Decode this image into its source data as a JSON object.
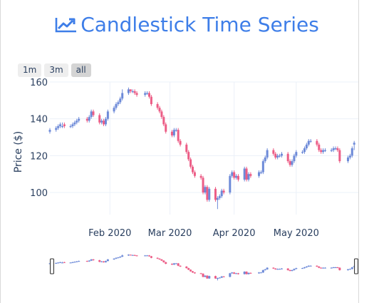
{
  "title": "Candlestick Time Series",
  "title_icon": "trend-chart-icon",
  "range_selector": {
    "buttons": [
      {
        "label": "1m",
        "active": false
      },
      {
        "label": "3m",
        "active": false
      },
      {
        "label": "all",
        "active": true
      }
    ]
  },
  "colors": {
    "accent": "#3e7ee8",
    "increasing": "#6d8ad8",
    "decreasing": "#ec5d86",
    "grid": "#ebf0f8"
  },
  "chart_data": {
    "type": "candlestick",
    "title": "Candlestick Time Series",
    "ylabel": "Price ($)",
    "ylim": [
      88,
      160
    ],
    "yticks": [
      100,
      120,
      140,
      160
    ],
    "xlim": [
      "2020-01-03",
      "2020-05-31"
    ],
    "xticks": [
      {
        "date": "2020-02-01",
        "label": "Feb 2020"
      },
      {
        "date": "2020-03-01",
        "label": "Mar 2020"
      },
      {
        "date": "2020-04-01",
        "label": "Apr 2020"
      },
      {
        "date": "2020-05-01",
        "label": "May 2020"
      }
    ],
    "grid": true,
    "rangeslider": true,
    "series": [
      {
        "dates": [
          "2020-01-03",
          "2020-01-06",
          "2020-01-07",
          "2020-01-08",
          "2020-01-09",
          "2020-01-10",
          "2020-01-13",
          "2020-01-14",
          "2020-01-15",
          "2020-01-16",
          "2020-01-17",
          "2020-01-21",
          "2020-01-22",
          "2020-01-23",
          "2020-01-24",
          "2020-01-27",
          "2020-01-28",
          "2020-01-29",
          "2020-01-30",
          "2020-01-31",
          "2020-02-03",
          "2020-02-04",
          "2020-02-05",
          "2020-02-06",
          "2020-02-07",
          "2020-02-10",
          "2020-02-11",
          "2020-02-12",
          "2020-02-13",
          "2020-02-14",
          "2020-02-18",
          "2020-02-19",
          "2020-02-20",
          "2020-02-21",
          "2020-02-24",
          "2020-02-25",
          "2020-02-26",
          "2020-02-27",
          "2020-02-28",
          "2020-03-02",
          "2020-03-03",
          "2020-03-04",
          "2020-03-05",
          "2020-03-06",
          "2020-03-09",
          "2020-03-10",
          "2020-03-11",
          "2020-03-12",
          "2020-03-13",
          "2020-03-16",
          "2020-03-17",
          "2020-03-18",
          "2020-03-19",
          "2020-03-20",
          "2020-03-23",
          "2020-03-24",
          "2020-03-25",
          "2020-03-26",
          "2020-03-27",
          "2020-03-30",
          "2020-03-31",
          "2020-04-01",
          "2020-04-02",
          "2020-04-03",
          "2020-04-06",
          "2020-04-07",
          "2020-04-08",
          "2020-04-09",
          "2020-04-13",
          "2020-04-14",
          "2020-04-15",
          "2020-04-16",
          "2020-04-17",
          "2020-04-20",
          "2020-04-21",
          "2020-04-22",
          "2020-04-23",
          "2020-04-24",
          "2020-04-27",
          "2020-04-28",
          "2020-04-29",
          "2020-04-30",
          "2020-05-01",
          "2020-05-04",
          "2020-05-05",
          "2020-05-06",
          "2020-05-07",
          "2020-05-08",
          "2020-05-11",
          "2020-05-12",
          "2020-05-13",
          "2020-05-14",
          "2020-05-15",
          "2020-05-18",
          "2020-05-19",
          "2020-05-20",
          "2020-05-21",
          "2020-05-22",
          "2020-05-26",
          "2020-05-27",
          "2020-05-28",
          "2020-05-29"
        ],
        "open": [
          133,
          134,
          135,
          136,
          136,
          137,
          136,
          136,
          137,
          138,
          139,
          140,
          139,
          141,
          144,
          142,
          138,
          139,
          137,
          140,
          144,
          146,
          148,
          149,
          151,
          154,
          156,
          155,
          155,
          154,
          153,
          154,
          154,
          152,
          148,
          146,
          144,
          141,
          137,
          133,
          131,
          134,
          134,
          128,
          126,
          122,
          118,
          114,
          111,
          109,
          108,
          100,
          103,
          96,
          102,
          96,
          97,
          98,
          101,
          100,
          109,
          111,
          108,
          109,
          107,
          113,
          107,
          110,
          109,
          111,
          111,
          117,
          119,
          123,
          121,
          119,
          120,
          120,
          121,
          117,
          115,
          117,
          120,
          122,
          122,
          124,
          126,
          128,
          128,
          126,
          123,
          122,
          123,
          123,
          123,
          124,
          124,
          123,
          117,
          119,
          120,
          126
        ],
        "close": [
          134,
          135,
          136,
          137,
          136,
          136,
          136,
          137,
          138,
          139,
          140,
          139,
          141,
          144,
          142,
          138,
          139,
          137,
          140,
          144,
          146,
          148,
          149,
          151,
          154,
          156,
          155,
          155,
          154,
          153,
          154,
          154,
          152,
          148,
          146,
          144,
          141,
          137,
          133,
          131,
          134,
          134,
          128,
          126,
          122,
          118,
          114,
          111,
          109,
          108,
          100,
          103,
          96,
          102,
          96,
          97,
          98,
          101,
          100,
          109,
          111,
          108,
          109,
          107,
          113,
          107,
          110,
          109,
          111,
          111,
          117,
          119,
          123,
          121,
          119,
          120,
          120,
          121,
          117,
          115,
          117,
          120,
          122,
          122,
          124,
          126,
          128,
          128,
          126,
          123,
          122,
          123,
          123,
          123,
          124,
          124,
          123,
          117,
          119,
          120,
          124,
          127
        ],
        "high": [
          135,
          136,
          137,
          138,
          138,
          138,
          137,
          138,
          139,
          140,
          141,
          141,
          142,
          145,
          145,
          143,
          140,
          140,
          141,
          145,
          147,
          149,
          150,
          152,
          156,
          157,
          156,
          156,
          156,
          155,
          155,
          155,
          155,
          153,
          149,
          147,
          145,
          142,
          138,
          134,
          135,
          135,
          135,
          129,
          127,
          123,
          119,
          115,
          112,
          110,
          109,
          104,
          104,
          103,
          103,
          98,
          99,
          102,
          102,
          110,
          112,
          112,
          110,
          110,
          114,
          114,
          111,
          111,
          112,
          112,
          118,
          120,
          124,
          124,
          122,
          121,
          121,
          122,
          122,
          118,
          118,
          121,
          123,
          123,
          125,
          127,
          129,
          129,
          129,
          127,
          124,
          124,
          124,
          124,
          125,
          125,
          125,
          124,
          120,
          121,
          125,
          128
        ],
        "low": [
          132,
          133,
          134,
          135,
          135,
          135,
          135,
          135,
          136,
          137,
          138,
          138,
          138,
          140,
          141,
          137,
          137,
          136,
          136,
          139,
          143,
          145,
          147,
          148,
          150,
          153,
          154,
          154,
          153,
          152,
          152,
          153,
          151,
          147,
          145,
          143,
          140,
          136,
          132,
          130,
          130,
          133,
          127,
          125,
          121,
          117,
          113,
          110,
          108,
          107,
          99,
          99,
          95,
          95,
          95,
          91,
          96,
          97,
          99,
          99,
          108,
          107,
          107,
          106,
          106,
          106,
          106,
          108,
          108,
          110,
          110,
          116,
          118,
          120,
          118,
          118,
          119,
          119,
          116,
          114,
          114,
          116,
          119,
          121,
          121,
          123,
          125,
          127,
          125,
          122,
          121,
          121,
          122,
          122,
          122,
          123,
          122,
          116,
          116,
          118,
          119,
          123
        ]
      }
    ]
  }
}
